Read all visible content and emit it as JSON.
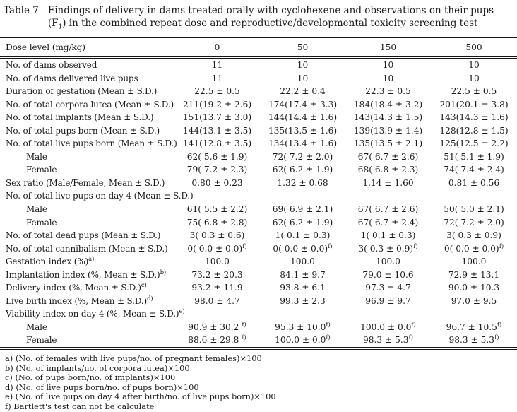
{
  "caption": {
    "label": "Table 7",
    "text_before_sub": "Findings of delivery in dams treated orally with cyclohexene and observations on their pups (F",
    "sub": "1",
    "text_after_sub": ") in the combined repeat dose and reproductive/developmental toxicity screening test"
  },
  "table": {
    "header": {
      "label": "Dose level (mg/kg)",
      "doses": [
        "0",
        "50",
        "150",
        "500"
      ]
    },
    "rows": [
      {
        "label": "No. of dams observed",
        "sup": "",
        "indent": false,
        "cells": [
          {
            "text": "11",
            "sup": ""
          },
          {
            "text": "10",
            "sup": ""
          },
          {
            "text": "10",
            "sup": ""
          },
          {
            "text": "10",
            "sup": ""
          }
        ]
      },
      {
        "label": "No. of dams delivered live pups",
        "sup": "",
        "indent": false,
        "cells": [
          {
            "text": "11",
            "sup": ""
          },
          {
            "text": "10",
            "sup": ""
          },
          {
            "text": "10",
            "sup": ""
          },
          {
            "text": "10",
            "sup": ""
          }
        ]
      },
      {
        "label": "Duration of gestation (Mean ± S.D.)",
        "sup": "",
        "indent": false,
        "cells": [
          {
            "text": "22.5 ± 0.5",
            "sup": ""
          },
          {
            "text": "22.2 ± 0.4",
            "sup": ""
          },
          {
            "text": "22.3 ± 0.5",
            "sup": ""
          },
          {
            "text": "22.5 ± 0.5",
            "sup": ""
          }
        ]
      },
      {
        "label": "No. of total corpora lutea (Mean ± S.D.)",
        "sup": "",
        "indent": false,
        "cells": [
          {
            "text": "211(19.2 ± 2.6)",
            "sup": ""
          },
          {
            "text": "174(17.4 ± 3.3)",
            "sup": ""
          },
          {
            "text": "184(18.4 ± 3.2)",
            "sup": ""
          },
          {
            "text": "201(20.1 ± 3.8)",
            "sup": ""
          }
        ]
      },
      {
        "label": "No. of total implants (Mean ± S.D.)",
        "sup": "",
        "indent": false,
        "cells": [
          {
            "text": "151(13.7 ± 3.0)",
            "sup": ""
          },
          {
            "text": "144(14.4 ± 1.6)",
            "sup": ""
          },
          {
            "text": "143(14.3 ± 1.5)",
            "sup": ""
          },
          {
            "text": "143(14.3 ± 1.6)",
            "sup": ""
          }
        ]
      },
      {
        "label": "No. of total pups born (Mean ± S.D.)",
        "sup": "",
        "indent": false,
        "cells": [
          {
            "text": "144(13.1 ± 3.5)",
            "sup": ""
          },
          {
            "text": "135(13.5 ± 1.6)",
            "sup": ""
          },
          {
            "text": "139(13.9 ± 1.4)",
            "sup": ""
          },
          {
            "text": "128(12.8 ± 1.5)",
            "sup": ""
          }
        ]
      },
      {
        "label": "No. of total live pups born (Mean ± S.D.)",
        "sup": "",
        "indent": false,
        "cells": [
          {
            "text": "141(12.8 ± 3.5)",
            "sup": ""
          },
          {
            "text": "134(13.4 ± 1.6)",
            "sup": ""
          },
          {
            "text": "135(13.5 ± 2.1)",
            "sup": ""
          },
          {
            "text": "125(12.5 ± 2.2)",
            "sup": ""
          }
        ]
      },
      {
        "label": "Male",
        "sup": "",
        "indent": true,
        "cells": [
          {
            "text": "62( 5.6 ± 1.9)",
            "sup": ""
          },
          {
            "text": "72( 7.2 ± 2.0)",
            "sup": ""
          },
          {
            "text": "67( 6.7 ± 2.6)",
            "sup": ""
          },
          {
            "text": "51( 5.1 ± 1.9)",
            "sup": ""
          }
        ]
      },
      {
        "label": "Female",
        "sup": "",
        "indent": true,
        "cells": [
          {
            "text": "79( 7.2 ± 2.3)",
            "sup": ""
          },
          {
            "text": "62( 6.2 ± 1.9)",
            "sup": ""
          },
          {
            "text": "68( 6.8 ± 2.3)",
            "sup": ""
          },
          {
            "text": "74( 7.4 ± 2.4)",
            "sup": ""
          }
        ]
      },
      {
        "label": "Sex ratio (Male/Female, Mean ± S.D.)",
        "sup": "",
        "indent": false,
        "cells": [
          {
            "text": "0.80 ± 0.23",
            "sup": ""
          },
          {
            "text": "1.32 ± 0.68",
            "sup": ""
          },
          {
            "text": "1.14 ± 1.60",
            "sup": ""
          },
          {
            "text": "0.81 ± 0.56",
            "sup": ""
          }
        ]
      },
      {
        "label": "No. of total live pups on day 4 (Mean ± S.D.)",
        "sup": "",
        "indent": false,
        "cells": [
          {
            "text": "",
            "sup": ""
          },
          {
            "text": "",
            "sup": ""
          },
          {
            "text": "",
            "sup": ""
          },
          {
            "text": "",
            "sup": ""
          }
        ]
      },
      {
        "label": "Male",
        "sup": "",
        "indent": true,
        "cells": [
          {
            "text": "61( 5.5 ± 2.2)",
            "sup": ""
          },
          {
            "text": "69( 6.9 ± 2.1)",
            "sup": ""
          },
          {
            "text": "67( 6.7 ± 2.6)",
            "sup": ""
          },
          {
            "text": "50( 5.0 ± 2.1)",
            "sup": ""
          }
        ]
      },
      {
        "label": "Female",
        "sup": "",
        "indent": true,
        "cells": [
          {
            "text": "75( 6.8 ± 2.8)",
            "sup": ""
          },
          {
            "text": "62( 6.2 ± 1.9)",
            "sup": ""
          },
          {
            "text": "67( 6.7 ± 2.4)",
            "sup": ""
          },
          {
            "text": "72( 7.2 ± 2.0)",
            "sup": ""
          }
        ]
      },
      {
        "label": "No. of total dead pups (Mean ± S.D.)",
        "sup": "",
        "indent": false,
        "cells": [
          {
            "text": "3( 0.3 ± 0.6)",
            "sup": ""
          },
          {
            "text": "1( 0.1 ± 0.3)",
            "sup": ""
          },
          {
            "text": "1( 0.1 ± 0.3)",
            "sup": ""
          },
          {
            "text": "3( 0.3 ± 0.9)",
            "sup": ""
          }
        ]
      },
      {
        "label": "No. of total cannibalism (Mean ± S.D.)",
        "sup": "",
        "indent": false,
        "cells": [
          {
            "text": "0( 0.0 ± 0.0)",
            "sup": "f)"
          },
          {
            "text": "0( 0.0 ± 0.0)",
            "sup": "f)"
          },
          {
            "text": "3( 0.3 ± 0.9)",
            "sup": "f)"
          },
          {
            "text": "0( 0.0 ± 0.0)",
            "sup": "f)"
          }
        ]
      },
      {
        "label": "Gestation index (%)",
        "sup": "a)",
        "indent": false,
        "cells": [
          {
            "text": "100.0",
            "sup": ""
          },
          {
            "text": "100.0",
            "sup": ""
          },
          {
            "text": "100.0",
            "sup": ""
          },
          {
            "text": "100.0",
            "sup": ""
          }
        ]
      },
      {
        "label": "Implantation index (%, Mean ± S.D.)",
        "sup": "b)",
        "indent": false,
        "cells": [
          {
            "text": "73.2 ± 20.3",
            "sup": ""
          },
          {
            "text": "84.1 ± 9.7",
            "sup": ""
          },
          {
            "text": "79.0 ± 10.6",
            "sup": ""
          },
          {
            "text": "72.9 ± 13.1",
            "sup": ""
          }
        ]
      },
      {
        "label": "Delivery index (%, Mean ± S.D.)",
        "sup": "c)",
        "indent": false,
        "cells": [
          {
            "text": "93.2 ± 11.9",
            "sup": ""
          },
          {
            "text": "93.8 ± 6.1",
            "sup": ""
          },
          {
            "text": "97.3 ± 4.7",
            "sup": ""
          },
          {
            "text": "90.0 ± 10.3",
            "sup": ""
          }
        ]
      },
      {
        "label": "Live birth index (%, Mean ± S.D.)",
        "sup": "d)",
        "indent": false,
        "cells": [
          {
            "text": "98.0 ± 4.7",
            "sup": ""
          },
          {
            "text": "99.3 ± 2.3",
            "sup": ""
          },
          {
            "text": "96.9 ± 9.7",
            "sup": ""
          },
          {
            "text": "97.0 ± 9.5",
            "sup": ""
          }
        ]
      },
      {
        "label": "Viability index on day 4 (%, Mean ± S.D.)",
        "sup": "e)",
        "indent": false,
        "cells": [
          {
            "text": "",
            "sup": ""
          },
          {
            "text": "",
            "sup": ""
          },
          {
            "text": "",
            "sup": ""
          },
          {
            "text": "",
            "sup": ""
          }
        ]
      },
      {
        "label": "Male",
        "sup": "",
        "indent": true,
        "cells": [
          {
            "text": "90.9 ± 30.2 ",
            "sup": "f)"
          },
          {
            "text": "95.3 ± 10.0",
            "sup": "f)"
          },
          {
            "text": "100.0 ± 0.0",
            "sup": "f)"
          },
          {
            "text": "96.7 ± 10.5",
            "sup": "f)"
          }
        ]
      },
      {
        "label": "Female",
        "sup": "",
        "indent": true,
        "cells": [
          {
            "text": "88.6 ± 29.8 ",
            "sup": "f)"
          },
          {
            "text": "100.0 ± 0.0",
            "sup": "f)"
          },
          {
            "text": "98.3 ± 5.3",
            "sup": "f)"
          },
          {
            "text": "98.3 ± 5.3",
            "sup": "f)"
          }
        ]
      }
    ]
  },
  "footnotes": [
    "a) (No. of females with live pups/no. of pregnant females)×100",
    "b) (No. of implants/no. of corpora lutea)×100",
    "c) (No. of pups born/no. of implants)×100",
    "d) (No. of live pups born/no. of pups born)×100",
    "e) (No. of live pups on day 4 after birth/no. of live pups born)×100",
    "f) Bartlett's test can not be calculate"
  ]
}
